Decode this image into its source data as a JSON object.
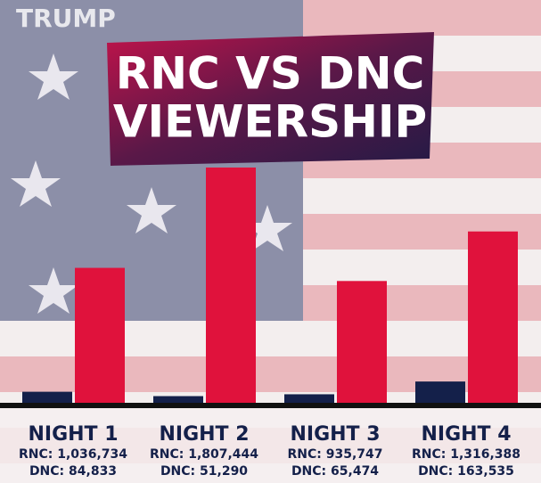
{
  "watermark": "TRUMP",
  "chart_data": {
    "type": "bar",
    "title": [
      "RNC VS DNC",
      "VIEWERSHIP"
    ],
    "categories": [
      "NIGHT 1",
      "NIGHT 2",
      "NIGHT 3",
      "NIGHT 4"
    ],
    "series": [
      {
        "color": "#14204a",
        "values": [
          84833,
          51290,
          65474,
          163535
        ],
        "value_labels": [
          "DNC: 84,833",
          "DNC: 51,290",
          "DNC: 65,474",
          "DNC: 163,535"
        ]
      },
      {
        "color": "#e0123c",
        "values": [
          1036734,
          1807444,
          935747,
          1316388
        ],
        "value_labels": [
          "RNC: 1,036,734",
          "RNC: 1,807,444",
          "RNC: 935,747",
          "RNC: 1,316,388"
        ]
      }
    ]
  }
}
